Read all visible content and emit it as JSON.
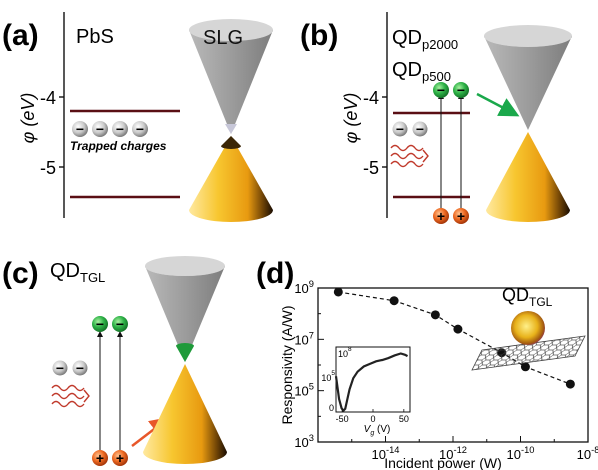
{
  "panels": {
    "a": {
      "label": "(a)",
      "material": "PbS",
      "graphene": "SLG",
      "axis_label": "φ (eV)",
      "ticks": [
        "-4",
        "-5"
      ],
      "trapped_label": "Trapped charges"
    },
    "b": {
      "label": "(b)",
      "qd_p2000": {
        "base": "QD",
        "sub": "p2000"
      },
      "qd_p500": {
        "base": "QD",
        "sub": "p500"
      },
      "axis_label": "φ (eV)",
      "ticks": [
        "-4",
        "-5"
      ]
    },
    "c": {
      "label": "(c)",
      "qd_title": {
        "base": "QD",
        "sub": "TGL"
      }
    },
    "d": {
      "label": "(d)",
      "inset_title": {
        "base": "QD",
        "sub": "TGL"
      },
      "inset_xlabel": {
        "base": "V",
        "sub": "g",
        "unit": " (V)"
      }
    }
  },
  "charge_signs": {
    "electron": "−",
    "hole": "+"
  },
  "colors": {
    "level_line": "#5a0f14",
    "electron_green": "#1f9a3a",
    "electron_grey": "#8c8c8c",
    "hole_orange": "#d95f1c",
    "arrow_green": "#1aa84b",
    "arrow_orange": "#e8572a",
    "wave_red": "#c0392b",
    "cone_grey": "#9a9a9a",
    "cone_gold": "#f2b21b"
  },
  "chart_data": {
    "type": "scatter",
    "xlabel": "Incident power (W)",
    "ylabel": "Responsivity (A/W)",
    "x_scale": "log",
    "y_scale": "log",
    "xlim": [
      1e-16,
      1e-08
    ],
    "ylim": [
      1000.0,
      1000000000.0
    ],
    "x_ticks": [
      {
        "label_base": "10",
        "label_exp": "-14",
        "value": 1e-14
      },
      {
        "label_base": "10",
        "label_exp": "-12",
        "value": 1e-12
      },
      {
        "label_base": "10",
        "label_exp": "-10",
        "value": 1e-10
      },
      {
        "label_base": "10",
        "label_exp": "-8",
        "value": 1e-08
      }
    ],
    "y_ticks": [
      {
        "label_base": "10",
        "label_exp": "3",
        "value": 1000.0
      },
      {
        "label_base": "10",
        "label_exp": "5",
        "value": 100000.0
      },
      {
        "label_base": "10",
        "label_exp": "7",
        "value": 10000000.0
      },
      {
        "label_base": "10",
        "label_exp": "9",
        "value": 1000000000.0
      }
    ],
    "x": [
      4e-16,
      1.8e-14,
      3e-13,
      1.4e-12,
      2.8e-11,
      1.4e-10,
      3e-09
    ],
    "y": [
      700000000.0,
      320000000.0,
      90000000.0,
      25000000.0,
      3000000.0,
      850000.0,
      180000.0
    ],
    "trend": "dashed",
    "inset": {
      "type": "line",
      "xlim": [
        -60,
        60
      ],
      "x_ticks": [
        "-50",
        "0",
        "50"
      ],
      "y_ticks": [
        {
          "label_base": "10",
          "label_exp": "8"
        },
        {
          "label_base": "10",
          "label_exp": "5"
        }
      ],
      "y_zero_label": "0",
      "curve_x": [
        -60,
        -55,
        -51,
        -48,
        -45,
        -42,
        -38,
        -32,
        -25,
        -15,
        -5,
        5,
        15,
        25,
        35,
        45,
        52,
        56
      ],
      "curve_y": [
        0.55,
        0.2,
        0.06,
        0.02,
        0.05,
        0.18,
        0.35,
        0.52,
        0.62,
        0.7,
        0.74,
        0.78,
        0.8,
        0.83,
        0.87,
        0.9,
        0.88,
        0.86
      ]
    }
  }
}
